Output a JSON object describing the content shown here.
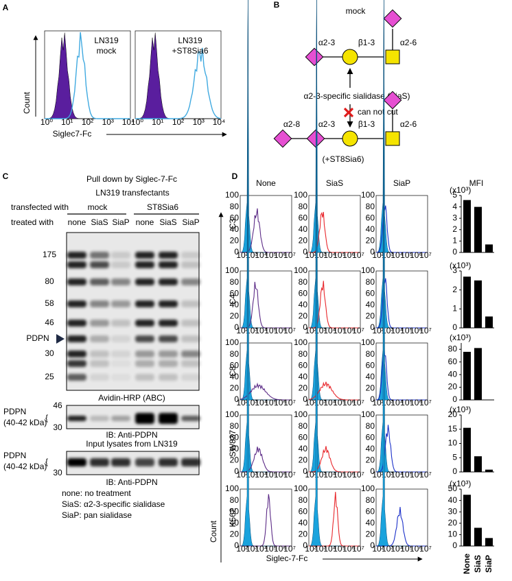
{
  "panel_a": {
    "label": "A",
    "plots": [
      {
        "title": [
          "LN319",
          "mock"
        ]
      },
      {
        "title": [
          "LN319",
          "+ST8Sia6"
        ]
      }
    ],
    "x_ticks": [
      "10⁰",
      "10¹",
      "10²",
      "10³",
      "10⁴"
    ],
    "x_label": "Siglec7-Fc",
    "y_label": "Count"
  },
  "panel_b": {
    "label": "B",
    "top": {
      "title": "mock",
      "links": [
        "α2-3",
        "β1-3",
        "α2-6"
      ]
    },
    "enzyme": "α2-3-specific sialidase (SiaS)",
    "blocked": "can not cut",
    "bottom": {
      "links": [
        "α2-8",
        "α2-3",
        "β1-3",
        "α2-6"
      ],
      "title": "(+ST8Sia6)"
    }
  },
  "panel_c": {
    "label": "C",
    "title": [
      "Pull down by Siglec-7-Fc",
      "LN319 transfectants"
    ],
    "transfected_label": "transfected with",
    "groups": [
      "mock",
      "ST8Sia6"
    ],
    "treated_label": "treated with",
    "lanes": [
      "none",
      "SiaS",
      "SiaP",
      "none",
      "SiaS",
      "SiaP"
    ],
    "blots": [
      {
        "markers": [
          "175",
          "80",
          "58",
          "46",
          "30",
          "25"
        ],
        "arrow_label": "PDPN",
        "caption": "Avidin-HRP (ABC)"
      },
      {
        "band_label": [
          "PDPN",
          "(40-42 kDa)"
        ],
        "markers": [
          "46",
          "30"
        ],
        "caption": "IB: Anti-PDPN"
      },
      {
        "header": "Input lysates from LN319",
        "band_label": [
          "PDPN",
          "(40-42 kDa)"
        ],
        "markers": [
          "30"
        ],
        "caption": "IB: Anti-PDPN"
      }
    ],
    "notes": [
      "none: no treatment",
      "SiaS: α2-3-specific sialidase",
      "SiaP: pan sialidase"
    ]
  },
  "panel_d": {
    "label": "D",
    "columns": [
      "None",
      "SiaS",
      "SiaP"
    ],
    "mfi_title": "MFI",
    "hist_ylim": [
      0,
      100
    ],
    "hist_yticks": [
      0,
      20,
      40,
      60,
      80,
      100
    ],
    "hist_xticks": [
      "10²",
      "10³",
      "10⁴",
      "10⁵",
      "10⁶",
      "10⁷"
    ],
    "y_label": "Count",
    "x_label": "Siglec-7-Fc",
    "rows": [
      {
        "name": "C3",
        "unit": "(x10³)",
        "ylim": [
          0,
          5
        ],
        "yticks": [
          0,
          1,
          2,
          3,
          4,
          5
        ],
        "values": [
          4.6,
          4.0,
          0.7
        ]
      },
      {
        "name": "C4",
        "unit": "(x10³)",
        "ylim": [
          0,
          3
        ],
        "yticks": [
          0,
          1,
          2,
          3
        ],
        "values": [
          2.7,
          2.5,
          0.6
        ]
      },
      {
        "name": "C8",
        "unit": "(x10³)",
        "ylim": [
          0,
          90
        ],
        "yticks": [
          0,
          20,
          40,
          60,
          80
        ],
        "values": [
          76,
          82,
          0
        ]
      },
      {
        "name": "SW837",
        "unit": "(x10³)",
        "ylim": [
          0,
          20
        ],
        "yticks": [
          0,
          5,
          10,
          15,
          20
        ],
        "values": [
          15.5,
          5.5,
          0.8
        ]
      },
      {
        "name": "K562",
        "unit": "(x10³)",
        "ylim": [
          0,
          50
        ],
        "yticks": [
          0,
          10,
          20,
          30,
          40,
          50
        ],
        "values": [
          45,
          16,
          7
        ]
      }
    ]
  }
}
